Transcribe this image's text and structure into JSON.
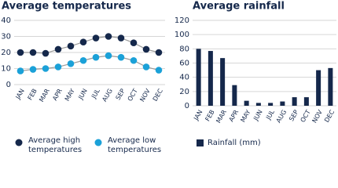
{
  "chart_data": [
    {
      "type": "line",
      "title": "Average temperatures",
      "categories": [
        "JAN",
        "FEB",
        "MAR",
        "APR",
        "MAY",
        "JUN",
        "JUL",
        "AUG",
        "SEP",
        "OCT",
        "NOV",
        "DEC"
      ],
      "series": [
        {
          "name": "Average high temperatures",
          "color": "#15284b",
          "values": [
            20,
            20,
            19.5,
            22,
            24,
            26.5,
            29,
            30,
            29,
            26,
            22,
            20
          ]
        },
        {
          "name": "Average low temperatures",
          "color": "#1ba1d8",
          "values": [
            8.5,
            9.5,
            10,
            11,
            13,
            15,
            17,
            18,
            17,
            15,
            11,
            9
          ]
        }
      ],
      "ylim": [
        0,
        40
      ],
      "yticks": [
        0,
        10,
        20,
        30,
        40
      ],
      "grid": true
    },
    {
      "type": "bar",
      "title": "Average rainfall",
      "categories": [
        "JAN",
        "FEB",
        "MAR",
        "APR",
        "MAY",
        "JUN",
        "JUL",
        "AUG",
        "SEP",
        "OCT",
        "NOV",
        "DEC"
      ],
      "series": [
        {
          "name": "Rainfall (mm)",
          "color": "#15284b",
          "values": [
            80,
            77,
            67,
            29,
            7,
            4,
            4,
            6,
            12,
            12,
            50,
            53
          ]
        }
      ],
      "ylim": [
        0,
        120
      ],
      "yticks": [
        0,
        20,
        40,
        60,
        80,
        100,
        120
      ],
      "grid": true
    }
  ]
}
